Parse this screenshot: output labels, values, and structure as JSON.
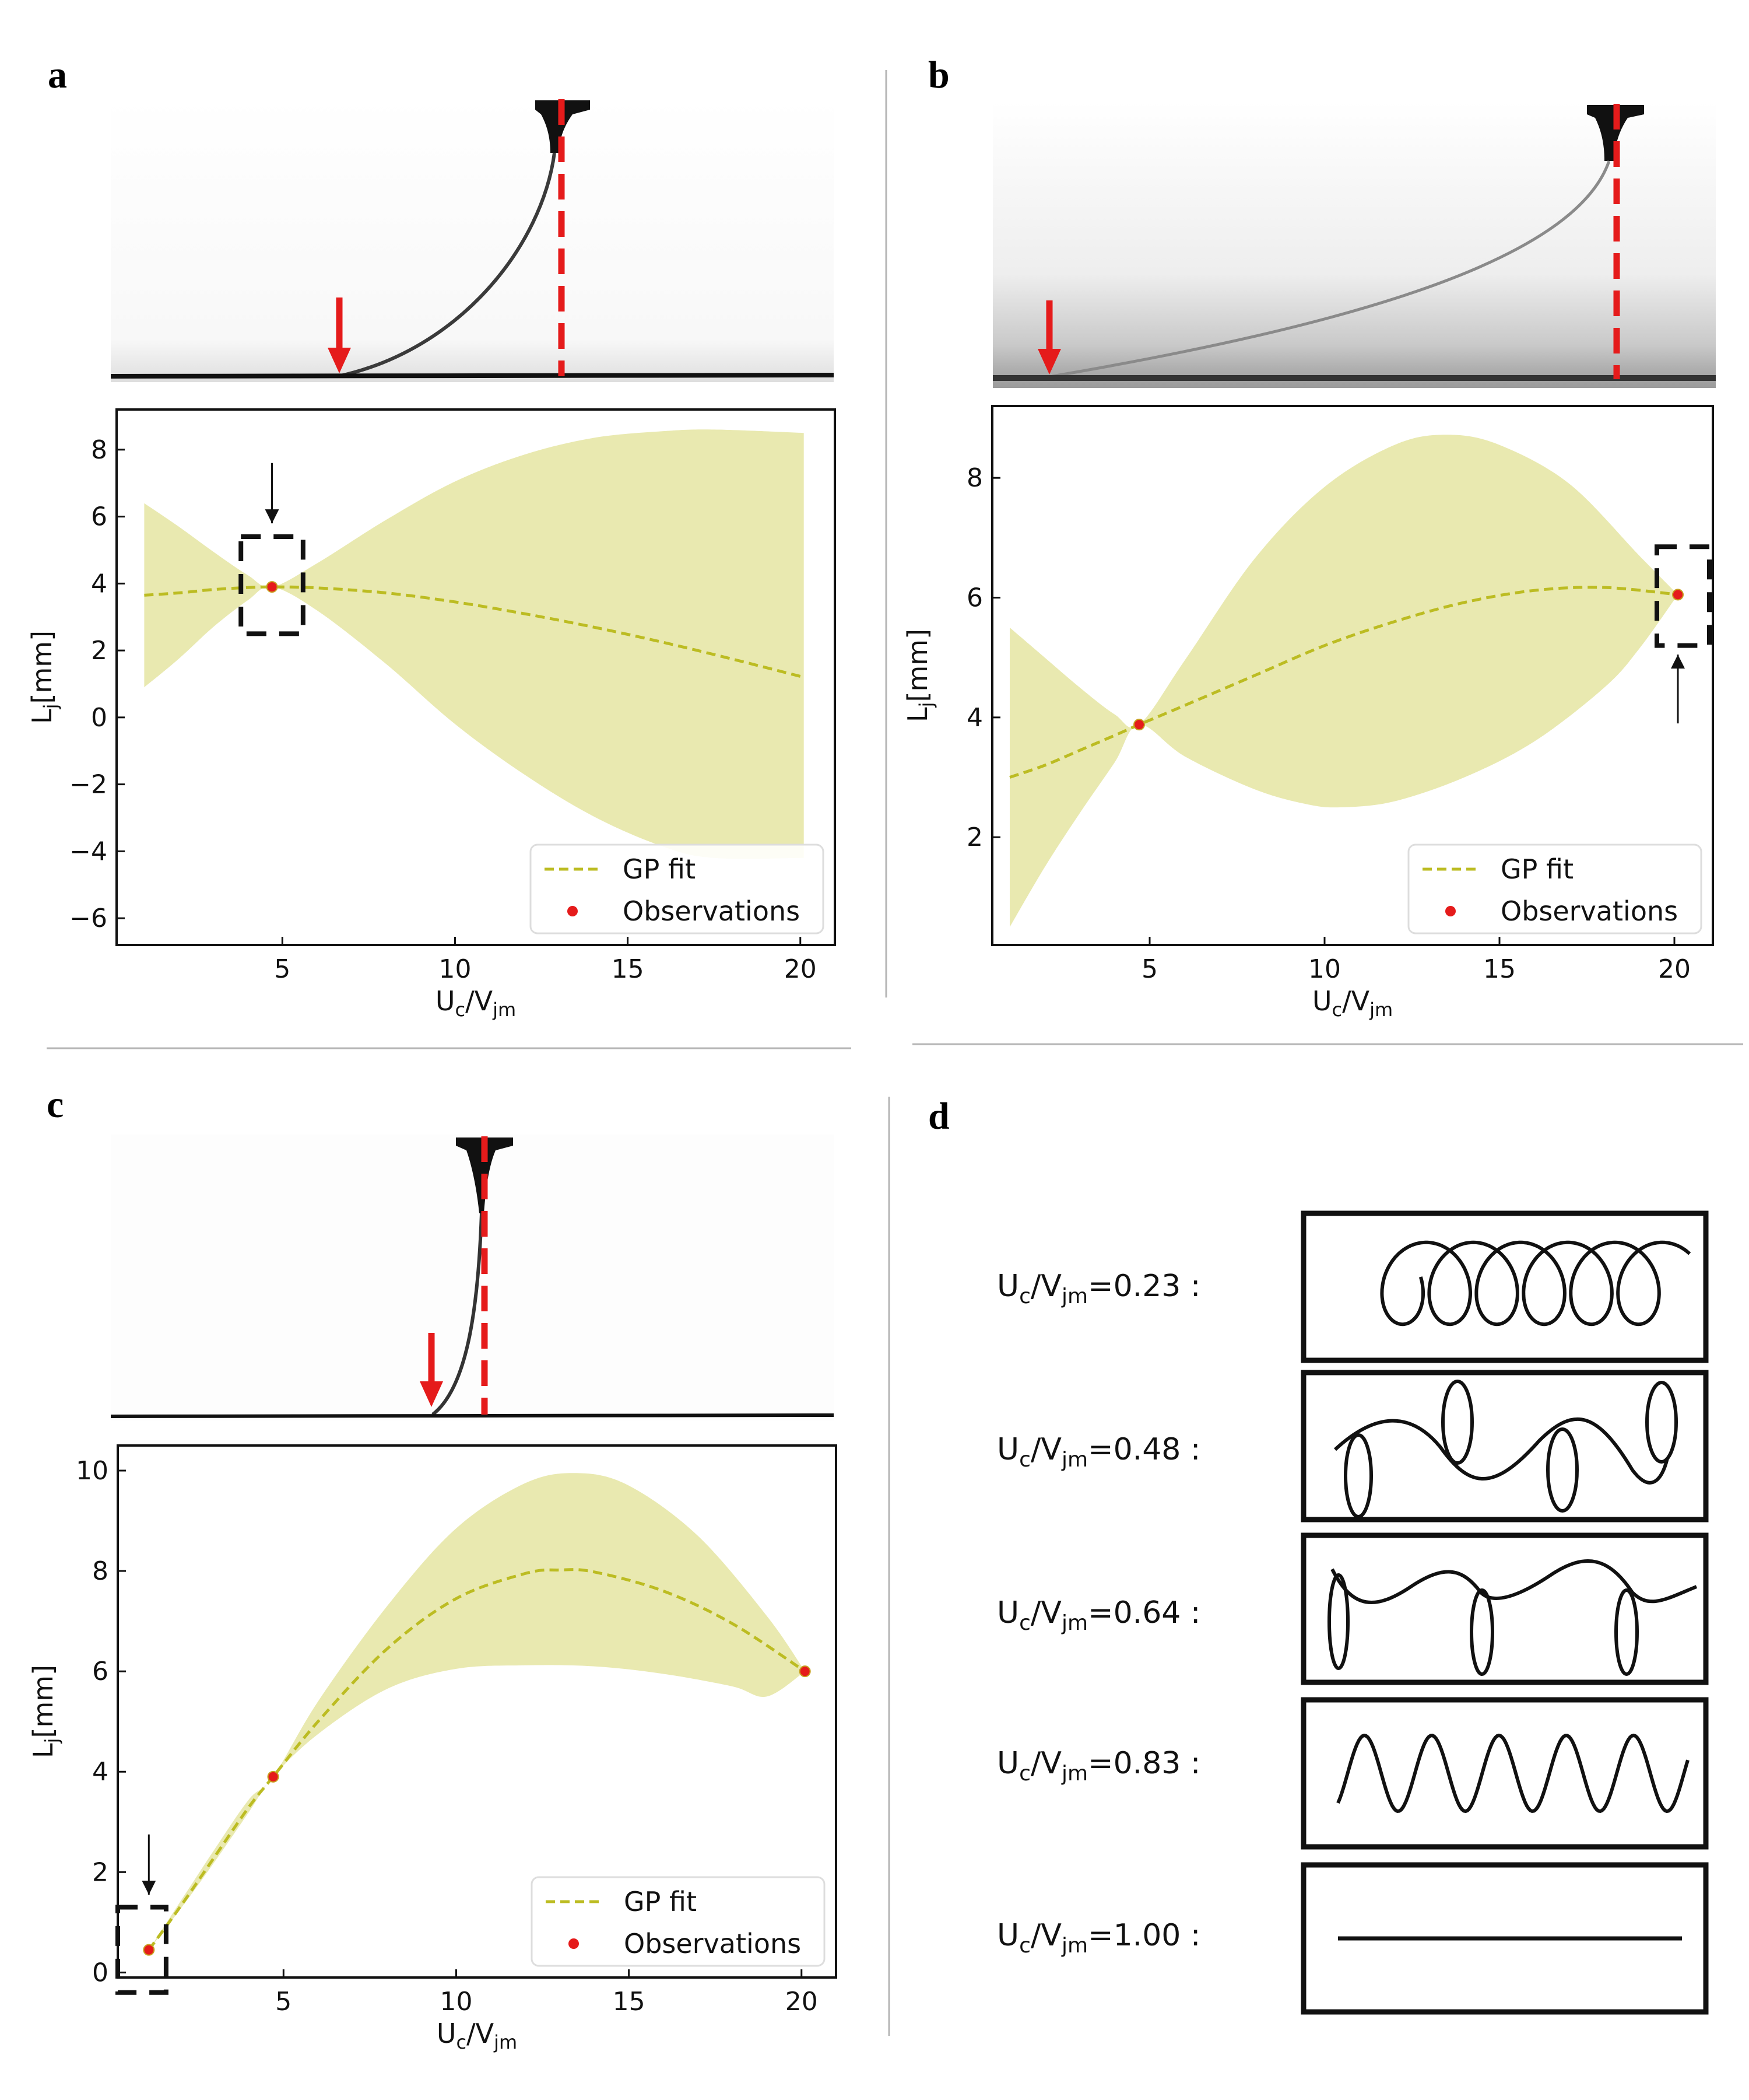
{
  "panels": {
    "a": {
      "letter": "a"
    },
    "b": {
      "letter": "b"
    },
    "c": {
      "letter": "c"
    },
    "d": {
      "letter": "d"
    }
  },
  "legend": {
    "fit_label": "GP fit",
    "obs_label": "Observations"
  },
  "axis": {
    "xlabel_main": "U",
    "xlabel_sub1": "c",
    "xlabel_mid": "/V",
    "xlabel_sub2": "jm",
    "ylabel_main": "L",
    "ylabel_sub": "j",
    "ylabel_unit": "[mm]"
  },
  "colors": {
    "fit": "#bcbc22",
    "band": "#e9e9b0",
    "obs": "#e51b1b",
    "marker": "#e51b1b"
  },
  "chart_data": [
    {
      "panel": "a",
      "type": "line",
      "xlim": [
        0.2,
        21
      ],
      "ylim": [
        -6.8,
        9.2
      ],
      "xticks": [
        5,
        10,
        15,
        20
      ],
      "yticks": [
        -6,
        -4,
        -2,
        0,
        2,
        4,
        6,
        8
      ],
      "legend_position": "bottom-right",
      "fit": {
        "x": [
          1,
          2,
          3,
          4,
          4.7,
          6,
          8,
          10,
          12,
          14,
          16,
          18,
          20.1
        ],
        "y": [
          3.65,
          3.72,
          3.82,
          3.88,
          3.9,
          3.87,
          3.72,
          3.45,
          3.1,
          2.7,
          2.25,
          1.75,
          1.2
        ]
      },
      "band_upper": {
        "x": [
          1,
          2,
          3,
          4,
          4.7,
          6,
          8,
          10,
          12,
          14,
          16,
          17.5,
          20.1
        ],
        "y": [
          6.4,
          5.7,
          4.95,
          4.25,
          3.9,
          4.6,
          5.9,
          7.05,
          7.85,
          8.35,
          8.55,
          8.6,
          8.5
        ]
      },
      "band_lower": {
        "x": [
          1,
          2,
          3,
          4,
          4.7,
          6,
          8,
          10,
          12,
          14,
          16,
          17.5,
          20.1
        ],
        "y": [
          0.9,
          1.75,
          2.7,
          3.5,
          3.9,
          3.2,
          1.6,
          -0.2,
          -1.7,
          -2.95,
          -3.85,
          -4.2,
          -4.2
        ]
      },
      "observations": [
        {
          "x": 4.7,
          "y": 3.9
        }
      ],
      "highlight_box": {
        "x": [
          3.8,
          5.6
        ],
        "y": [
          2.5,
          5.4
        ]
      },
      "pointer_arrow": {
        "x": 4.7,
        "from_y": 7.6,
        "to_y": 5.8,
        "direction": "down"
      }
    },
    {
      "panel": "b",
      "type": "line",
      "xlim": [
        0.5,
        21.1
      ],
      "ylim": [
        0.2,
        9.2
      ],
      "xticks": [
        5,
        10,
        15,
        20
      ],
      "yticks": [
        2,
        4,
        6,
        8
      ],
      "legend_position": "bottom-right",
      "fit": {
        "x": [
          1,
          2,
          3,
          4,
          4.7,
          6,
          8,
          10,
          12,
          14,
          16,
          18,
          20.1
        ],
        "y": [
          3.0,
          3.2,
          3.45,
          3.7,
          3.88,
          4.2,
          4.7,
          5.2,
          5.6,
          5.92,
          6.12,
          6.17,
          6.05
        ]
      },
      "band_upper": {
        "x": [
          1,
          2,
          3,
          4,
          4.7,
          6,
          8,
          10,
          12,
          13.5,
          15,
          17,
          19,
          20.1
        ],
        "y": [
          5.5,
          5.0,
          4.5,
          4.05,
          3.88,
          4.95,
          6.65,
          7.85,
          8.55,
          8.72,
          8.55,
          7.9,
          6.7,
          6.05
        ]
      },
      "band_lower": {
        "x": [
          1,
          2,
          3,
          4,
          4.7,
          6,
          8,
          9.5,
          10.5,
          12,
          14,
          16,
          18,
          19,
          20.1
        ],
        "y": [
          0.5,
          1.5,
          2.4,
          3.25,
          3.88,
          3.35,
          2.8,
          2.55,
          2.5,
          2.6,
          3.0,
          3.6,
          4.5,
          5.15,
          6.05
        ]
      },
      "observations": [
        {
          "x": 4.7,
          "y": 3.88
        },
        {
          "x": 20.1,
          "y": 6.05
        }
      ],
      "highlight_box": {
        "x": [
          19.5,
          21.0
        ],
        "y": [
          5.2,
          6.85
        ]
      },
      "pointer_arrow": {
        "x": 20.1,
        "from_y": 3.9,
        "to_y": 5.05,
        "direction": "up"
      }
    },
    {
      "panel": "c",
      "type": "line",
      "xlim": [
        0.2,
        21
      ],
      "ylim": [
        -0.1,
        10.5
      ],
      "xticks": [
        5,
        10,
        15,
        20
      ],
      "yticks": [
        0,
        2,
        4,
        6,
        8,
        10
      ],
      "legend_position": "bottom-right",
      "fit": {
        "x": [
          1.1,
          2,
          3,
          4,
          4.7,
          6,
          8,
          10,
          12,
          13,
          14,
          16,
          18,
          20.1
        ],
        "y": [
          0.45,
          1.3,
          2.3,
          3.3,
          3.9,
          5.0,
          6.45,
          7.45,
          7.95,
          8.02,
          7.98,
          7.6,
          6.95,
          6.0
        ]
      },
      "band_upper": {
        "x": [
          1.1,
          2,
          3,
          4,
          4.7,
          6,
          8,
          10,
          12,
          13.5,
          15,
          17,
          19,
          20.1
        ],
        "y": [
          0.45,
          1.4,
          2.45,
          3.45,
          3.9,
          5.4,
          7.3,
          8.85,
          9.75,
          9.95,
          9.7,
          8.7,
          7.1,
          6.0
        ]
      },
      "band_lower": {
        "x": [
          1.1,
          2,
          3,
          4,
          4.7,
          6,
          8,
          10,
          12,
          14,
          16,
          18,
          19,
          20.1
        ],
        "y": [
          0.45,
          1.25,
          2.2,
          3.2,
          3.9,
          4.75,
          5.65,
          6.05,
          6.12,
          6.1,
          5.95,
          5.7,
          5.5,
          6.0
        ]
      },
      "observations": [
        {
          "x": 1.1,
          "y": 0.45
        },
        {
          "x": 4.7,
          "y": 3.9
        },
        {
          "x": 20.1,
          "y": 6.0
        }
      ],
      "highlight_box": {
        "x": [
          0.2,
          1.6
        ],
        "y": [
          -0.4,
          1.3
        ]
      },
      "pointer_arrow": {
        "x": 1.1,
        "from_y": 2.75,
        "to_y": 1.55,
        "direction": "down"
      }
    }
  ],
  "jet_patterns": [
    {
      "label_main": "U",
      "label_sub1": "c",
      "label_mid": "/V",
      "label_sub2": "jm",
      "label_value": "=0.23 :",
      "pattern": "coil"
    },
    {
      "label_main": "U",
      "label_sub1": "c",
      "label_mid": "/V",
      "label_sub2": "jm",
      "label_value": "=0.48 :",
      "pattern": "alternating-loops"
    },
    {
      "label_main": "U",
      "label_sub1": "c",
      "label_mid": "/V",
      "label_sub2": "jm",
      "label_value": "=0.64 :",
      "pattern": "translated-coiling"
    },
    {
      "label_main": "U",
      "label_sub1": "c",
      "label_mid": "/V",
      "label_sub2": "jm",
      "label_value": "=0.83 :",
      "pattern": "meandering"
    },
    {
      "label_main": "U",
      "label_sub1": "c",
      "label_mid": "/V",
      "label_sub2": "jm",
      "label_value": "=1.00 :",
      "pattern": "straight"
    }
  ]
}
